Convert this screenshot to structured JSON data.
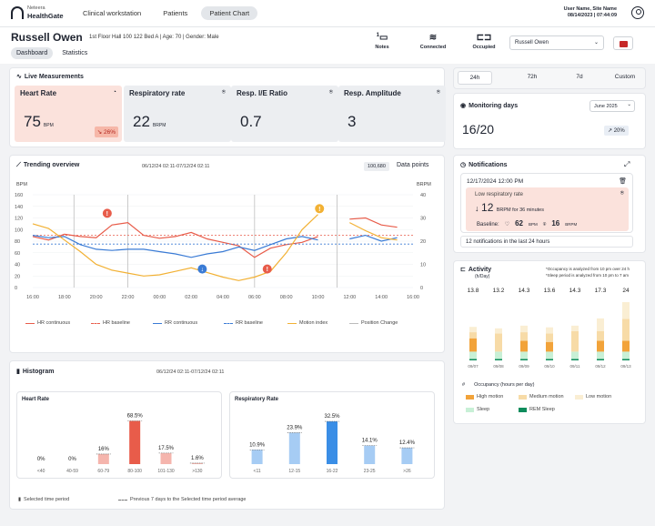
{
  "topbar": {
    "brand_line1": "Neteera",
    "brand_line2": "HealthGate",
    "tabs": [
      {
        "label": "Clinical workstation"
      },
      {
        "label": "Patients"
      },
      {
        "label": "Patient Chart"
      }
    ],
    "user_line1": "User Name, Site Name",
    "user_line2": "08/14/2023 | 07:44:09"
  },
  "header": {
    "patient_name": "Russell Owen",
    "patient_info": "1st Floor Hall 100 122 Bed A  | Age: 70  | Gender: Male",
    "subtabs": [
      {
        "label": "Dashboard"
      },
      {
        "label": "Statistics"
      }
    ],
    "notes_count": "1",
    "notes_label": "Notes",
    "connected_label": "Connected",
    "occupied_label": "Occupied",
    "patient_select_value": "Russell Owen"
  },
  "live": {
    "title": "Live Measurements",
    "tiles": [
      {
        "label": "Heart Rate",
        "value": "75",
        "unit": "BPM",
        "badge": "↘ 26%"
      },
      {
        "label": "Respiratory rate",
        "value": "22",
        "unit": "BRPM"
      },
      {
        "label": "Resp. I/E Ratio",
        "value": "0.7"
      },
      {
        "label": "Resp. Amplitude",
        "value": "3"
      }
    ]
  },
  "trending": {
    "title": "Trending overview",
    "range": "06/12/24 02:11-07/12/24 02:11",
    "badge": "100,680",
    "data_points_label": "Data points",
    "left_axis": "BPM",
    "right_axis": "BRPM",
    "legend": [
      "HR continuous",
      "HR baseline",
      "RR continuous",
      "RR baseline",
      "Motion index",
      "Position Change"
    ]
  },
  "chart_data": [
    {
      "type": "line",
      "title": "Trending overview",
      "x": [
        "16:00",
        "18:00",
        "20:00",
        "22:00",
        "00:00",
        "02:00",
        "04:00",
        "06:00",
        "08:00",
        "10:00",
        "12:00",
        "14:00",
        "16:00"
      ],
      "ylabel": "BPM",
      "y2label": "BRPM",
      "ylim": [
        0,
        160
      ],
      "y2lim": [
        0,
        40
      ],
      "yticks": [
        0,
        20,
        40,
        60,
        80,
        100,
        120,
        140,
        160
      ],
      "y2ticks": [
        0,
        10,
        20,
        30,
        40
      ],
      "series": [
        {
          "name": "HR continuous",
          "color": "#e85c4a",
          "points": [
            [
              0,
              88
            ],
            [
              0.5,
              82
            ],
            [
              1,
              92
            ],
            [
              1.5,
              88
            ],
            [
              2,
              86
            ],
            [
              2.5,
              108
            ],
            [
              3,
              112
            ],
            [
              3.5,
              90
            ],
            [
              4,
              85
            ],
            [
              4.5,
              88
            ],
            [
              5,
              95
            ],
            [
              5.5,
              84
            ],
            [
              6,
              78
            ],
            [
              6.5,
              72
            ],
            [
              7,
              52
            ],
            [
              7.5,
              68
            ],
            [
              8,
              74
            ],
            [
              8.5,
              78
            ],
            [
              9,
              88
            ],
            [
              9.5,
              null
            ],
            [
              10,
              118
            ],
            [
              10.5,
              120
            ],
            [
              11,
              108
            ],
            [
              11.5,
              104
            ]
          ]
        },
        {
          "name": "HR baseline",
          "color": "#e85c4a",
          "value": 90
        },
        {
          "name": "RR continuous",
          "color": "#3a7bd5",
          "points": [
            [
              0,
              90
            ],
            [
              0.5,
              86
            ],
            [
              1,
              88
            ],
            [
              1.5,
              74
            ],
            [
              2,
              66
            ],
            [
              2.5,
              64
            ],
            [
              3,
              66
            ],
            [
              3.5,
              66
            ],
            [
              4,
              62
            ],
            [
              4.5,
              58
            ],
            [
              5,
              52
            ],
            [
              5.5,
              58
            ],
            [
              6,
              62
            ],
            [
              6.5,
              70
            ],
            [
              7,
              64
            ],
            [
              7.5,
              74
            ],
            [
              8,
              84
            ],
            [
              8.5,
              88
            ],
            [
              9,
              82
            ],
            [
              9.5,
              null
            ],
            [
              10,
              84
            ],
            [
              10.5,
              90
            ],
            [
              11,
              80
            ],
            [
              11.5,
              86
            ]
          ]
        },
        {
          "name": "RR baseline",
          "color": "#3a7bd5",
          "value": 75
        },
        {
          "name": "Motion index",
          "color": "#f2b134",
          "points": [
            [
              0,
              110
            ],
            [
              0.5,
              102
            ],
            [
              1,
              82
            ],
            [
              1.5,
              62
            ],
            [
              2,
              40
            ],
            [
              2.5,
              30
            ],
            [
              3,
              25
            ],
            [
              3.5,
              20
            ],
            [
              4,
              22
            ],
            [
              4.5,
              28
            ],
            [
              5,
              34
            ],
            [
              5.5,
              26
            ],
            [
              6,
              18
            ],
            [
              6.5,
              12
            ],
            [
              7,
              18
            ],
            [
              7.5,
              28
            ],
            [
              8,
              60
            ],
            [
              8.5,
              100
            ],
            [
              9,
              126
            ],
            [
              9.5,
              null
            ],
            [
              10,
              112
            ],
            [
              10.5,
              98
            ],
            [
              11,
              86
            ],
            [
              11.5,
              82
            ]
          ]
        }
      ],
      "events": [
        {
          "x": 2.35,
          "y": 128,
          "label": "!",
          "color": "#e85c4a"
        },
        {
          "x": 5.35,
          "y": 32,
          "label": "↓",
          "color": "#3a7bd5"
        },
        {
          "x": 7.4,
          "y": 32,
          "label": "!",
          "color": "#e85c4a"
        },
        {
          "x": 9.05,
          "y": 136,
          "label": "!",
          "color": "#f2b134"
        }
      ]
    },
    {
      "type": "bar",
      "title": "Heart Rate",
      "categories": [
        "<40",
        "40-59",
        "60-79",
        "80-100",
        "101-130",
        ">130"
      ],
      "values": [
        0,
        0,
        16,
        68.5,
        17.5,
        1.6
      ],
      "labels": [
        "0%",
        "0%",
        "16%",
        "68.5%",
        "17.5%",
        "1.6%"
      ],
      "color": "#e85c4a",
      "ylim": [
        0,
        75
      ]
    },
    {
      "type": "bar",
      "title": "Respiratory Rate",
      "categories": [
        "<11",
        "12-15",
        "16-22",
        "23-25",
        ">26"
      ],
      "values": [
        10.9,
        23.9,
        32.5,
        14.1,
        12.4
      ],
      "labels": [
        "10.9%",
        "23.9%",
        "32.5%",
        "14.1%",
        "12.4%"
      ],
      "color": "#3a8ee6",
      "ylim": [
        0,
        36
      ]
    },
    {
      "type": "bar",
      "title": "Activity",
      "ylabel": "(h/Day)",
      "categories": [
        "09/07",
        "09/08",
        "09/09",
        "09/10",
        "09/11",
        "09/12",
        "09/13"
      ],
      "totals": [
        13.8,
        13.2,
        14.3,
        13.6,
        14.3,
        17.3,
        24
      ],
      "stacks": [
        "REM Sleep",
        "Sleep",
        "High motion",
        "Medium motion",
        "Low motion"
      ],
      "series": [
        {
          "name": "REM Sleep",
          "color": "#0e8c5c",
          "values": [
            0.6,
            0.6,
            0.6,
            0.6,
            0.6,
            0.6,
            0.6
          ]
        },
        {
          "name": "Sleep",
          "color": "#c8f0d6",
          "values": [
            3,
            3,
            3,
            3,
            3,
            3,
            3
          ]
        },
        {
          "name": "High motion",
          "color": "#f2a33a",
          "values": [
            5.5,
            0,
            4.5,
            4,
            0,
            4.5,
            4.5
          ]
        },
        {
          "name": "Medium motion",
          "color": "#f7dba7",
          "values": [
            2.5,
            7.5,
            3.5,
            3.5,
            8.5,
            4,
            9
          ]
        },
        {
          "name": "Low motion",
          "color": "#faeed3",
          "values": [
            2.2,
            2.1,
            2.7,
            2.5,
            2.2,
            5.2,
            6.9
          ]
        }
      ],
      "ylim": [
        0,
        24
      ]
    }
  ],
  "range_tabs": [
    {
      "label": "24h"
    },
    {
      "label": "72h"
    },
    {
      "label": "7d"
    },
    {
      "label": "Custom"
    }
  ],
  "monitoring": {
    "title": "Monitoring days",
    "select_value": "June 2025",
    "value": "16/20",
    "badge": "↗ 20%"
  },
  "notifications": {
    "title": "Notifications",
    "date": "12/17/2024 12:00 PM",
    "alert_title": "Low respiratory rate",
    "alert_value": "12",
    "alert_detail": "BRPM for 36 minutes",
    "baseline_label": "Baseline:",
    "baseline_hr": "62",
    "baseline_hr_unit": "BPM",
    "baseline_rr": "16",
    "baseline_rr_unit": "BRPM",
    "footer": "12 notifications in the last 24 hours"
  },
  "activity": {
    "title": "Activity",
    "subtitle": "(h/Day)",
    "note1": "*Occupancy is analyzed from 10 pm over 24 h",
    "note2": "*Sleep period is analyzed from 10 pm to 7 am",
    "legend_title": "Occupancy (hours per day)",
    "legend": [
      "High motion",
      "Medium motion",
      "Low motion",
      "Sleep",
      "REM Sleep"
    ]
  },
  "histogram": {
    "title": "Histogram",
    "range": "06/12/24 02:11-07/12/24 02:11",
    "hr_title": "Heart Rate",
    "rr_title": "Respiratory Rate",
    "footer_left": "Selected time period",
    "footer_right": "Previous 7 days to the Selected time period average"
  }
}
